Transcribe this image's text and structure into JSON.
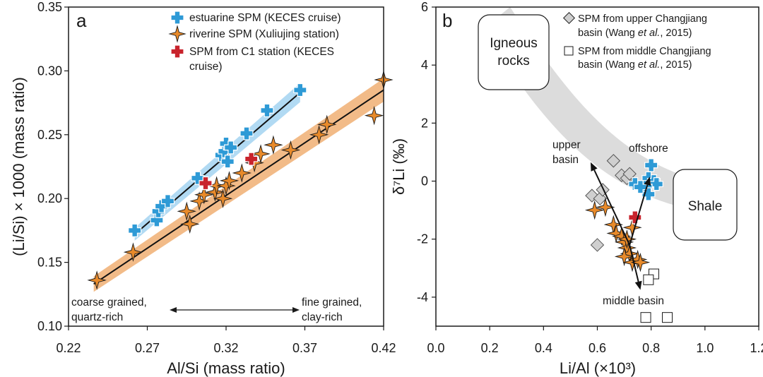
{
  "chart_data": [
    {
      "panel": "a",
      "type": "scatter",
      "xlabel": "Al/Si (mass ratio)",
      "ylabel": "(Li/Si) × 1000 (mass ratio)",
      "xlim": [
        0.22,
        0.42
      ],
      "ylim": [
        0.1,
        0.35
      ],
      "xticks": [
        0.22,
        0.27,
        0.32,
        0.37,
        0.42
      ],
      "xtick_labels": [
        "0.22",
        "0.27",
        "0.32",
        "0.37",
        "0.42"
      ],
      "yticks": [
        0.1,
        0.15,
        0.2,
        0.25,
        0.3,
        0.35
      ],
      "ytick_labels": [
        "0.10",
        "0.15",
        "0.20",
        "0.25",
        "0.30",
        "0.35"
      ],
      "legend_position": "top-right",
      "series": [
        {
          "name": "estuarine SPM (KECES cruise)",
          "marker": "cross",
          "color": "#2e9ad6",
          "points": [
            [
              0.262,
              0.175
            ],
            [
              0.276,
              0.183
            ],
            [
              0.277,
              0.19
            ],
            [
              0.279,
              0.194
            ],
            [
              0.283,
              0.198
            ],
            [
              0.302,
              0.216
            ],
            [
              0.317,
              0.234
            ],
            [
              0.319,
              0.237
            ],
            [
              0.32,
              0.243
            ],
            [
              0.321,
              0.229
            ],
            [
              0.323,
              0.24
            ],
            [
              0.333,
              0.251
            ],
            [
              0.346,
              0.269
            ],
            [
              0.367,
              0.285
            ]
          ]
        },
        {
          "name": "riverine SPM (Xuliujing station)",
          "marker": "star",
          "color": "#e88a2a",
          "points": [
            [
              0.238,
              0.136
            ],
            [
              0.261,
              0.158
            ],
            [
              0.295,
              0.19
            ],
            [
              0.297,
              0.18
            ],
            [
              0.303,
              0.198
            ],
            [
              0.306,
              0.203
            ],
            [
              0.313,
              0.205
            ],
            [
              0.314,
              0.21
            ],
            [
              0.318,
              0.2
            ],
            [
              0.32,
              0.21
            ],
            [
              0.322,
              0.214
            ],
            [
              0.33,
              0.22
            ],
            [
              0.338,
              0.228
            ],
            [
              0.342,
              0.235
            ],
            [
              0.35,
              0.242
            ],
            [
              0.361,
              0.238
            ],
            [
              0.379,
              0.25
            ],
            [
              0.384,
              0.258
            ],
            [
              0.414,
              0.265
            ],
            [
              0.42,
              0.293
            ]
          ]
        },
        {
          "name": "SPM from C1 station (KECES cruise)",
          "marker": "cross",
          "color": "#c8232c",
          "points": [
            [
              0.307,
              0.212
            ],
            [
              0.336,
              0.231
            ]
          ]
        }
      ],
      "fits": [
        {
          "x": [
            0.262,
            0.367
          ],
          "y": [
            0.172,
            0.283
          ],
          "band_color": "#a9d6f2"
        },
        {
          "x": [
            0.236,
            0.42
          ],
          "y": [
            0.133,
            0.285
          ],
          "band_color": "#f1b47b"
        }
      ],
      "annotations": {
        "left": "coarse grained,\nquartz-rich",
        "right": "fine grained,\nclay-rich"
      }
    },
    {
      "panel": "b",
      "type": "scatter",
      "xlabel": "Li/Al (×10³)",
      "ylabel": "δ⁷Li (‰)",
      "xlim": [
        0.0,
        1.2
      ],
      "ylim": [
        -5,
        6
      ],
      "xticks": [
        0.0,
        0.2,
        0.4,
        0.6,
        0.8,
        1.0,
        1.2
      ],
      "xtick_labels": [
        "0.0",
        "0.2",
        "0.4",
        "0.6",
        "0.8",
        "1.0",
        "1.2"
      ],
      "yticks": [
        -4,
        -2,
        0,
        2,
        4,
        6
      ],
      "ytick_labels": [
        "-4",
        "-2",
        "0",
        "2",
        "4",
        "6"
      ],
      "legend_position": "top-right",
      "series": [
        {
          "name": "SPM from upper Changjiang basin (Wang et al., 2015)",
          "marker": "diamond",
          "color": "#cfcfcf",
          "points": [
            [
              0.58,
              -0.5
            ],
            [
              0.61,
              -0.6
            ],
            [
              0.62,
              -0.3
            ],
            [
              0.6,
              -2.2
            ],
            [
              0.66,
              0.7
            ],
            [
              0.69,
              0.2
            ],
            [
              0.71,
              0.1
            ],
            [
              0.72,
              0.25
            ]
          ]
        },
        {
          "name": "SPM from middle Changjiang basin (Wang et al., 2015)",
          "marker": "square",
          "color": "#ffffff",
          "points": [
            [
              0.81,
              -3.2
            ],
            [
              0.79,
              -3.4
            ],
            [
              0.78,
              -4.7
            ],
            [
              0.86,
              -4.7
            ]
          ]
        },
        {
          "name": "estuarine SPM",
          "marker": "cross",
          "color": "#2e9ad6",
          "points": [
            [
              0.79,
              0.1
            ],
            [
              0.8,
              0.55
            ],
            [
              0.81,
              0.0
            ],
            [
              0.82,
              -0.1
            ],
            [
              0.78,
              -0.2
            ],
            [
              0.79,
              -0.45
            ],
            [
              0.74,
              -0.1
            ],
            [
              0.76,
              -0.2
            ]
          ]
        },
        {
          "name": "riverine SPM",
          "marker": "star",
          "color": "#e88a2a",
          "points": [
            [
              0.59,
              -1.0
            ],
            [
              0.63,
              -0.9
            ],
            [
              0.66,
              -1.5
            ],
            [
              0.67,
              -1.8
            ],
            [
              0.69,
              -1.9
            ],
            [
              0.7,
              -2.1
            ],
            [
              0.71,
              -2.3
            ],
            [
              0.72,
              -2.5
            ],
            [
              0.71,
              -2.0
            ],
            [
              0.73,
              -1.6
            ],
            [
              0.7,
              -2.6
            ],
            [
              0.73,
              -2.8
            ],
            [
              0.75,
              -2.7
            ],
            [
              0.76,
              -2.8
            ]
          ]
        },
        {
          "name": "C1 station",
          "marker": "cross",
          "color": "#c8232c",
          "points": [
            [
              0.74,
              -1.25
            ]
          ]
        }
      ],
      "labels": {
        "igneous": "Igneous\nrocks",
        "shale": "Shale",
        "upper": "upper\nbasin",
        "offshore": "offshore",
        "middle": "middle basin"
      }
    }
  ],
  "panel_a": {
    "letter": "a",
    "legend": [
      {
        "label": "estuarine SPM (KECES cruise)"
      },
      {
        "label": "riverine SPM (Xuliujing station)"
      },
      {
        "label": "SPM from C1 station (KECES",
        "label2": "cruise)"
      }
    ],
    "annot_left_1": "coarse grained,",
    "annot_left_2": "quartz-rich",
    "annot_right_1": "fine grained,",
    "annot_right_2": "clay-rich"
  },
  "panel_b": {
    "letter": "b",
    "legend": [
      {
        "label1": "SPM from upper Changjiang",
        "label2_a": "basin (Wang ",
        "label2_b": "et al.",
        "label2_c": ", 2015)"
      },
      {
        "label1": "SPM from middle Changjiang",
        "label2_a": "basin (Wang ",
        "label2_b": "et al.",
        "label2_c": ", 2015)"
      }
    ],
    "igneous_1": "Igneous",
    "igneous_2": "rocks",
    "shale": "Shale",
    "upper_1": "upper",
    "upper_2": "basin",
    "offshore": "offshore",
    "middle": "middle basin"
  }
}
